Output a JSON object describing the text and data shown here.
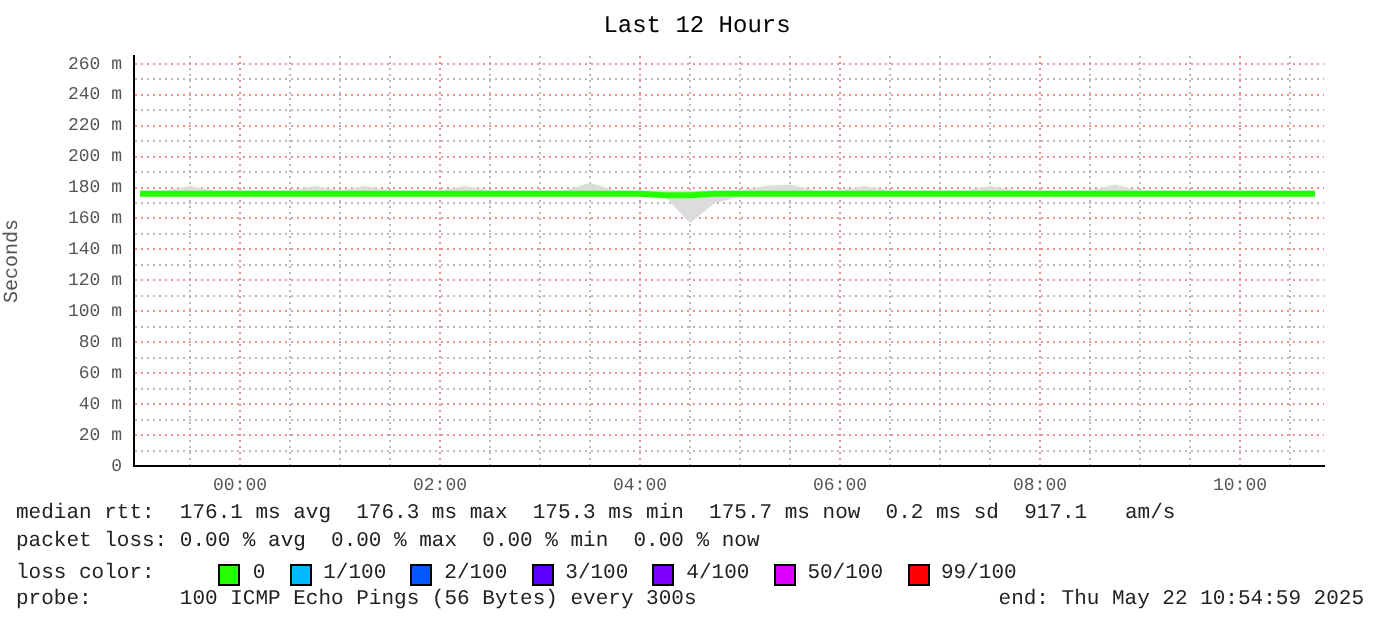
{
  "chart_data": {
    "type": "line",
    "title": "Last 12 Hours",
    "ylabel": "Seconds",
    "legend_title": "loss color:",
    "legend": "bottom",
    "grid": true,
    "marker": "none",
    "line_style": "solid",
    "x": [
      -1,
      -0.75,
      -0.5,
      -0.25,
      0,
      0.25,
      0.5,
      0.75,
      1,
      1.25,
      1.5,
      1.75,
      2,
      2.25,
      2.5,
      2.75,
      3,
      3.25,
      3.5,
      3.75,
      4,
      4.25,
      4.5,
      4.75,
      5,
      5.25,
      5.5,
      5.75,
      6,
      6.25,
      6.5,
      6.75,
      7,
      7.25,
      7.5,
      7.75,
      8,
      8.25,
      8.5,
      8.75,
      9,
      9.25,
      9.5,
      9.75,
      10,
      10.25,
      10.5,
      10.75
    ],
    "xlim": [
      -1.06,
      10.84
    ],
    "xticks": [
      {
        "value": -0.5,
        "label": null
      },
      {
        "value": 0,
        "label": "00:00"
      },
      {
        "value": 0.5,
        "label": null
      },
      {
        "value": 1,
        "label": null
      },
      {
        "value": 1.5,
        "label": null
      },
      {
        "value": 2,
        "label": "02:00"
      },
      {
        "value": 2.5,
        "label": null
      },
      {
        "value": 3,
        "label": null
      },
      {
        "value": 3.5,
        "label": null
      },
      {
        "value": 4,
        "label": "04:00"
      },
      {
        "value": 4.5,
        "label": null
      },
      {
        "value": 5,
        "label": null
      },
      {
        "value": 5.5,
        "label": null
      },
      {
        "value": 6,
        "label": "06:00"
      },
      {
        "value": 6.5,
        "label": null
      },
      {
        "value": 7,
        "label": null
      },
      {
        "value": 7.5,
        "label": null
      },
      {
        "value": 8,
        "label": "08:00"
      },
      {
        "value": 8.5,
        "label": null
      },
      {
        "value": 9,
        "label": null
      },
      {
        "value": 9.5,
        "label": null
      },
      {
        "value": 10,
        "label": "10:00"
      },
      {
        "value": 10.5,
        "label": null
      }
    ],
    "ylim": [
      0,
      265
    ],
    "yticks": [
      {
        "value": 0,
        "label": "0"
      },
      {
        "value": 10,
        "label": null
      },
      {
        "value": 20,
        "label": "20 m"
      },
      {
        "value": 30,
        "label": null
      },
      {
        "value": 40,
        "label": "40 m"
      },
      {
        "value": 50,
        "label": null
      },
      {
        "value": 60,
        "label": "60 m"
      },
      {
        "value": 70,
        "label": null
      },
      {
        "value": 80,
        "label": "80 m"
      },
      {
        "value": 90,
        "label": null
      },
      {
        "value": 100,
        "label": "100 m"
      },
      {
        "value": 110,
        "label": null
      },
      {
        "value": 120,
        "label": "120 m"
      },
      {
        "value": 130,
        "label": null
      },
      {
        "value": 140,
        "label": "140 m"
      },
      {
        "value": 150,
        "label": null
      },
      {
        "value": 160,
        "label": "160 m"
      },
      {
        "value": 170,
        "label": null
      },
      {
        "value": 180,
        "label": "180 m"
      },
      {
        "value": 190,
        "label": null
      },
      {
        "value": 200,
        "label": "200 m"
      },
      {
        "value": 210,
        "label": null
      },
      {
        "value": 220,
        "label": "220 m"
      },
      {
        "value": 230,
        "label": null
      },
      {
        "value": 240,
        "label": "240 m"
      },
      {
        "value": 250,
        "label": null
      },
      {
        "value": 260,
        "label": "260 m"
      }
    ],
    "series": [
      {
        "name": "0",
        "color": "#26ff00",
        "values": [
          176,
          176,
          176,
          176,
          176,
          176,
          176,
          176,
          176,
          176,
          176,
          176,
          176,
          176,
          176,
          176,
          176,
          176,
          176,
          176,
          176,
          175,
          175,
          176,
          176,
          176,
          176,
          176,
          176,
          176,
          176,
          176,
          176,
          176,
          176,
          176,
          176,
          176,
          176,
          176,
          176,
          176,
          176,
          176,
          176,
          176,
          176,
          176
        ],
        "upper": [
          178,
          178,
          181,
          178,
          178,
          178,
          178,
          181,
          178,
          181,
          178,
          178,
          178,
          181,
          178,
          178,
          178,
          178,
          183,
          178,
          178,
          178,
          178,
          178,
          178,
          181,
          182,
          178,
          178,
          181,
          178,
          178,
          178,
          178,
          181,
          178,
          178,
          178,
          178,
          182,
          178,
          178,
          178,
          178,
          178,
          178,
          178,
          178
        ],
        "lower": [
          174,
          174,
          174,
          174,
          174,
          174,
          174,
          174,
          174,
          174,
          174,
          174,
          174,
          174,
          174,
          174,
          174,
          174,
          174,
          174,
          174,
          174,
          157,
          170,
          174,
          174,
          174,
          174,
          174,
          174,
          174,
          174,
          174,
          174,
          174,
          174,
          174,
          174,
          174,
          174,
          174,
          174,
          174,
          174,
          174,
          174,
          174,
          174
        ]
      },
      {
        "name": "1/100",
        "color": "#00b8ff",
        "values": [
          null,
          null,
          null,
          null,
          null,
          null,
          null,
          null,
          null,
          null,
          null,
          null,
          null,
          null,
          null,
          null,
          null,
          null,
          null,
          null,
          null,
          null,
          null,
          null,
          null,
          null,
          null,
          null,
          null,
          null,
          null,
          null,
          null,
          null,
          null,
          null,
          null,
          null,
          null,
          null,
          null,
          null,
          null,
          null,
          null,
          null,
          null,
          null
        ]
      },
      {
        "name": "2/100",
        "color": "#0059ff",
        "values": [
          null,
          null,
          null,
          null,
          null,
          null,
          null,
          null,
          null,
          null,
          null,
          null,
          null,
          null,
          null,
          null,
          null,
          null,
          null,
          null,
          null,
          null,
          null,
          null,
          null,
          null,
          null,
          null,
          null,
          null,
          null,
          null,
          null,
          null,
          null,
          null,
          null,
          null,
          null,
          null,
          null,
          null,
          null,
          null,
          null,
          null,
          null,
          null
        ]
      },
      {
        "name": "3/100",
        "color": "#5e00ff",
        "values": [
          null,
          null,
          null,
          null,
          null,
          null,
          null,
          null,
          null,
          null,
          null,
          null,
          null,
          null,
          null,
          null,
          null,
          null,
          null,
          null,
          null,
          null,
          null,
          null,
          null,
          null,
          null,
          null,
          null,
          null,
          null,
          null,
          null,
          null,
          null,
          null,
          null,
          null,
          null,
          null,
          null,
          null,
          null,
          null,
          null,
          null,
          null,
          null
        ]
      },
      {
        "name": "4/100",
        "color": "#7e00ff",
        "values": [
          null,
          null,
          null,
          null,
          null,
          null,
          null,
          null,
          null,
          null,
          null,
          null,
          null,
          null,
          null,
          null,
          null,
          null,
          null,
          null,
          null,
          null,
          null,
          null,
          null,
          null,
          null,
          null,
          null,
          null,
          null,
          null,
          null,
          null,
          null,
          null,
          null,
          null,
          null,
          null,
          null,
          null,
          null,
          null,
          null,
          null,
          null,
          null
        ]
      },
      {
        "name": "50/100",
        "color": "#dd00ff",
        "values": [
          null,
          null,
          null,
          null,
          null,
          null,
          null,
          null,
          null,
          null,
          null,
          null,
          null,
          null,
          null,
          null,
          null,
          null,
          null,
          null,
          null,
          null,
          null,
          null,
          null,
          null,
          null,
          null,
          null,
          null,
          null,
          null,
          null,
          null,
          null,
          null,
          null,
          null,
          null,
          null,
          null,
          null,
          null,
          null,
          null,
          null,
          null,
          null
        ]
      },
      {
        "name": "99/100",
        "color": "#ff0000",
        "values": [
          null,
          null,
          null,
          null,
          null,
          null,
          null,
          null,
          null,
          null,
          null,
          null,
          null,
          null,
          null,
          null,
          null,
          null,
          null,
          null,
          null,
          null,
          null,
          null,
          null,
          null,
          null,
          null,
          null,
          null,
          null,
          null,
          null,
          null,
          null,
          null,
          null,
          null,
          null,
          null,
          null,
          null,
          null,
          null,
          null,
          null,
          null,
          null
        ]
      }
    ],
    "annotations": [
      "median rtt:  176.1 ms avg  176.3 ms max  175.3 ms min  175.7 ms now  0.2 ms sd  917.1   am/s",
      "packet loss: 0.00 % avg  0.00 % max  0.00 % min  0.00 % now",
      "probe:       100 ICMP Echo Pings (56 Bytes) every 300s",
      "end: Thu May 22 10:54:59 2025"
    ]
  }
}
